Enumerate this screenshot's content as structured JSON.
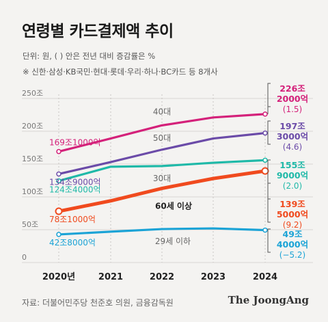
{
  "header": {
    "title": "연령별 카드결제액 추이",
    "unit_note": "단위: 원, ( ) 안은 전년 대비 증감률은 %",
    "scope_note": "※ 신한·삼성·KB국민·현대·롯데·우리·하나·BC카드 등 8개사"
  },
  "footer": {
    "source": "자료: 더불어민주당 천준호 의원, 금융감독원",
    "brand": "The JoongAng"
  },
  "chart_data": {
    "type": "line",
    "categories": [
      "2020년",
      "2021",
      "2022",
      "2023",
      "2024"
    ],
    "ylim": [
      0,
      250
    ],
    "yticks": [
      0,
      50,
      100,
      150,
      200,
      250
    ],
    "ytick_labels": [
      "0",
      "50조",
      "100조",
      "150조",
      "200조",
      "250조"
    ],
    "grid": true,
    "series": [
      {
        "name": "40대",
        "color": "#d4217a",
        "values": [
          169.1,
          189,
          209,
          221,
          226.2
        ],
        "start_label": "169조1000억",
        "end_label": [
          "226조",
          "2000억",
          "(1.5)"
        ]
      },
      {
        "name": "50대",
        "color": "#6b4ba8",
        "values": [
          134.9,
          153,
          172,
          189,
          197.3
        ],
        "start_label": "134조9000억",
        "end_label": [
          "197조",
          "3000억",
          "(4.6)"
        ]
      },
      {
        "name": "30대",
        "color": "#1fb9a8",
        "values": [
          124.4,
          146,
          147,
          152,
          155.9
        ],
        "start_label": "124조4000억",
        "end_label": [
          "155조",
          "9000억",
          "(2.0)"
        ]
      },
      {
        "name": "60세 이상",
        "color": "#f04a1e",
        "values": [
          78.1,
          94,
          113,
          128,
          139.5
        ],
        "start_label": "78조1000억",
        "end_label": [
          "139조",
          "5000억",
          "(9.2)"
        ]
      },
      {
        "name": "29세 이하",
        "color": "#1ba3d6",
        "values": [
          42.8,
          47,
          51,
          52,
          49.4
        ],
        "start_label": "42조8000억",
        "end_label": [
          "49조",
          "4000억",
          "(−5.2)"
        ]
      }
    ]
  }
}
